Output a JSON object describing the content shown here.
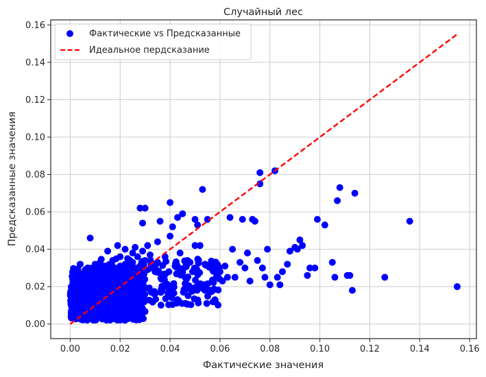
{
  "chart_data": {
    "type": "scatter",
    "title": "Случайный лес",
    "xlabel": "Фактические значения",
    "ylabel": "Предсказанные значения",
    "xlim": [
      -0.0078,
      0.1627
    ],
    "ylim": [
      -0.0078,
      0.1627
    ],
    "xticks": [
      "0.00",
      "0.02",
      "0.04",
      "0.06",
      "0.08",
      "0.10",
      "0.12",
      "0.14",
      "0.16"
    ],
    "yticks": [
      "0.00",
      "0.02",
      "0.04",
      "0.06",
      "0.08",
      "0.10",
      "0.12",
      "0.14",
      "0.16"
    ],
    "grid": true,
    "legend_position": "top-left",
    "colors": {
      "points": "#0000ff",
      "ideal_line": "#ff0000",
      "frame": "#262626",
      "grid": "#cccccc"
    },
    "series": [
      {
        "name": "Фактические vs Предсказанные",
        "kind": "scatter",
        "points": [
          [
            0.001,
            0.024
          ],
          [
            0.002,
            0.027
          ],
          [
            0.002,
            0.019
          ],
          [
            0.003,
            0.022
          ],
          [
            0.004,
            0.032
          ],
          [
            0.004,
            0.017
          ],
          [
            0.005,
            0.026
          ],
          [
            0.005,
            0.021
          ],
          [
            0.006,
            0.029
          ],
          [
            0.006,
            0.018
          ],
          [
            0.007,
            0.024
          ],
          [
            0.007,
            0.03
          ],
          [
            0.008,
            0.046
          ],
          [
            0.008,
            0.02
          ],
          [
            0.009,
            0.027
          ],
          [
            0.009,
            0.022
          ],
          [
            0.01,
            0.032
          ],
          [
            0.01,
            0.025
          ],
          [
            0.011,
            0.019
          ],
          [
            0.011,
            0.028
          ],
          [
            0.012,
            0.024
          ],
          [
            0.012,
            0.033
          ],
          [
            0.013,
            0.02
          ],
          [
            0.013,
            0.027
          ],
          [
            0.014,
            0.022
          ],
          [
            0.014,
            0.031
          ],
          [
            0.015,
            0.039
          ],
          [
            0.015,
            0.025
          ],
          [
            0.016,
            0.021
          ],
          [
            0.016,
            0.03
          ],
          [
            0.017,
            0.034
          ],
          [
            0.017,
            0.026
          ],
          [
            0.018,
            0.019
          ],
          [
            0.018,
            0.029
          ],
          [
            0.019,
            0.042
          ],
          [
            0.019,
            0.024
          ],
          [
            0.02,
            0.031
          ],
          [
            0.02,
            0.036
          ],
          [
            0.021,
            0.027
          ],
          [
            0.021,
            0.022
          ],
          [
            0.022,
            0.04
          ],
          [
            0.022,
            0.032
          ],
          [
            0.023,
            0.025
          ],
          [
            0.023,
            0.035
          ],
          [
            0.024,
            0.028
          ],
          [
            0.025,
            0.038
          ],
          [
            0.025,
            0.033
          ],
          [
            0.026,
            0.041
          ],
          [
            0.026,
            0.027
          ],
          [
            0.027,
            0.036
          ],
          [
            0.028,
            0.031
          ],
          [
            0.028,
            0.062
          ],
          [
            0.029,
            0.054
          ],
          [
            0.029,
            0.039
          ],
          [
            0.03,
            0.062
          ],
          [
            0.03,
            0.034
          ],
          [
            0.031,
            0.042
          ],
          [
            0.032,
            0.037
          ],
          [
            0.033,
            0.03
          ],
          [
            0.034,
            0.028
          ],
          [
            0.035,
            0.044
          ],
          [
            0.035,
            0.033
          ],
          [
            0.036,
            0.055
          ],
          [
            0.037,
            0.025
          ],
          [
            0.038,
            0.036
          ],
          [
            0.039,
            0.02
          ],
          [
            0.04,
            0.065
          ],
          [
            0.04,
            0.047
          ],
          [
            0.041,
            0.052
          ],
          [
            0.042,
            0.031
          ],
          [
            0.043,
            0.057
          ],
          [
            0.044,
            0.038
          ],
          [
            0.045,
            0.059
          ],
          [
            0.046,
            0.025
          ],
          [
            0.047,
            0.034
          ],
          [
            0.048,
            0.033
          ],
          [
            0.049,
            0.028
          ],
          [
            0.05,
            0.056
          ],
          [
            0.05,
            0.042
          ],
          [
            0.051,
            0.053
          ],
          [
            0.052,
            0.042
          ],
          [
            0.053,
            0.072
          ],
          [
            0.054,
            0.032
          ],
          [
            0.055,
            0.056
          ],
          [
            0.056,
            0.018
          ],
          [
            0.057,
            0.03
          ],
          [
            0.058,
            0.013
          ],
          [
            0.059,
            0.026
          ],
          [
            0.06,
            0.028
          ],
          [
            0.061,
            0.023
          ],
          [
            0.062,
            0.031
          ],
          [
            0.063,
            0.025
          ],
          [
            0.064,
            0.057
          ],
          [
            0.065,
            0.04
          ],
          [
            0.066,
            0.025
          ],
          [
            0.068,
            0.033
          ],
          [
            0.069,
            0.056
          ],
          [
            0.07,
            0.03
          ],
          [
            0.071,
            0.038
          ],
          [
            0.072,
            0.023
          ],
          [
            0.073,
            0.056
          ],
          [
            0.074,
            0.055
          ],
          [
            0.075,
            0.034
          ],
          [
            0.076,
            0.081
          ],
          [
            0.076,
            0.075
          ],
          [
            0.077,
            0.03
          ],
          [
            0.078,
            0.025
          ],
          [
            0.079,
            0.04
          ],
          [
            0.08,
            0.021
          ],
          [
            0.082,
            0.082
          ],
          [
            0.083,
            0.025
          ],
          [
            0.084,
            0.021
          ],
          [
            0.085,
            0.028
          ],
          [
            0.087,
            0.032
          ],
          [
            0.088,
            0.039
          ],
          [
            0.09,
            0.041
          ],
          [
            0.091,
            0.04
          ],
          [
            0.092,
            0.045
          ],
          [
            0.093,
            0.042
          ],
          [
            0.095,
            0.026
          ],
          [
            0.096,
            0.03
          ],
          [
            0.098,
            0.03
          ],
          [
            0.099,
            0.056
          ],
          [
            0.102,
            0.053
          ],
          [
            0.105,
            0.033
          ],
          [
            0.106,
            0.025
          ],
          [
            0.107,
            0.066
          ],
          [
            0.108,
            0.073
          ],
          [
            0.111,
            0.026
          ],
          [
            0.112,
            0.026
          ],
          [
            0.113,
            0.018
          ],
          [
            0.114,
            0.07
          ],
          [
            0.126,
            0.025
          ],
          [
            0.136,
            0.055
          ],
          [
            0.155,
            0.02
          ]
        ],
        "cloud": [
          {
            "x_range": [
              0.0,
              0.03
            ],
            "y_range": [
              0.002,
              0.03
            ],
            "count": 700
          },
          {
            "x_range": [
              0.01,
              0.06
            ],
            "y_range": [
              0.01,
              0.035
            ],
            "count": 220
          }
        ]
      },
      {
        "name": "Идеальное пердсказание",
        "kind": "line",
        "style": "dashed",
        "x": [
          0.0,
          0.155
        ],
        "y": [
          0.0,
          0.155
        ]
      }
    ]
  }
}
